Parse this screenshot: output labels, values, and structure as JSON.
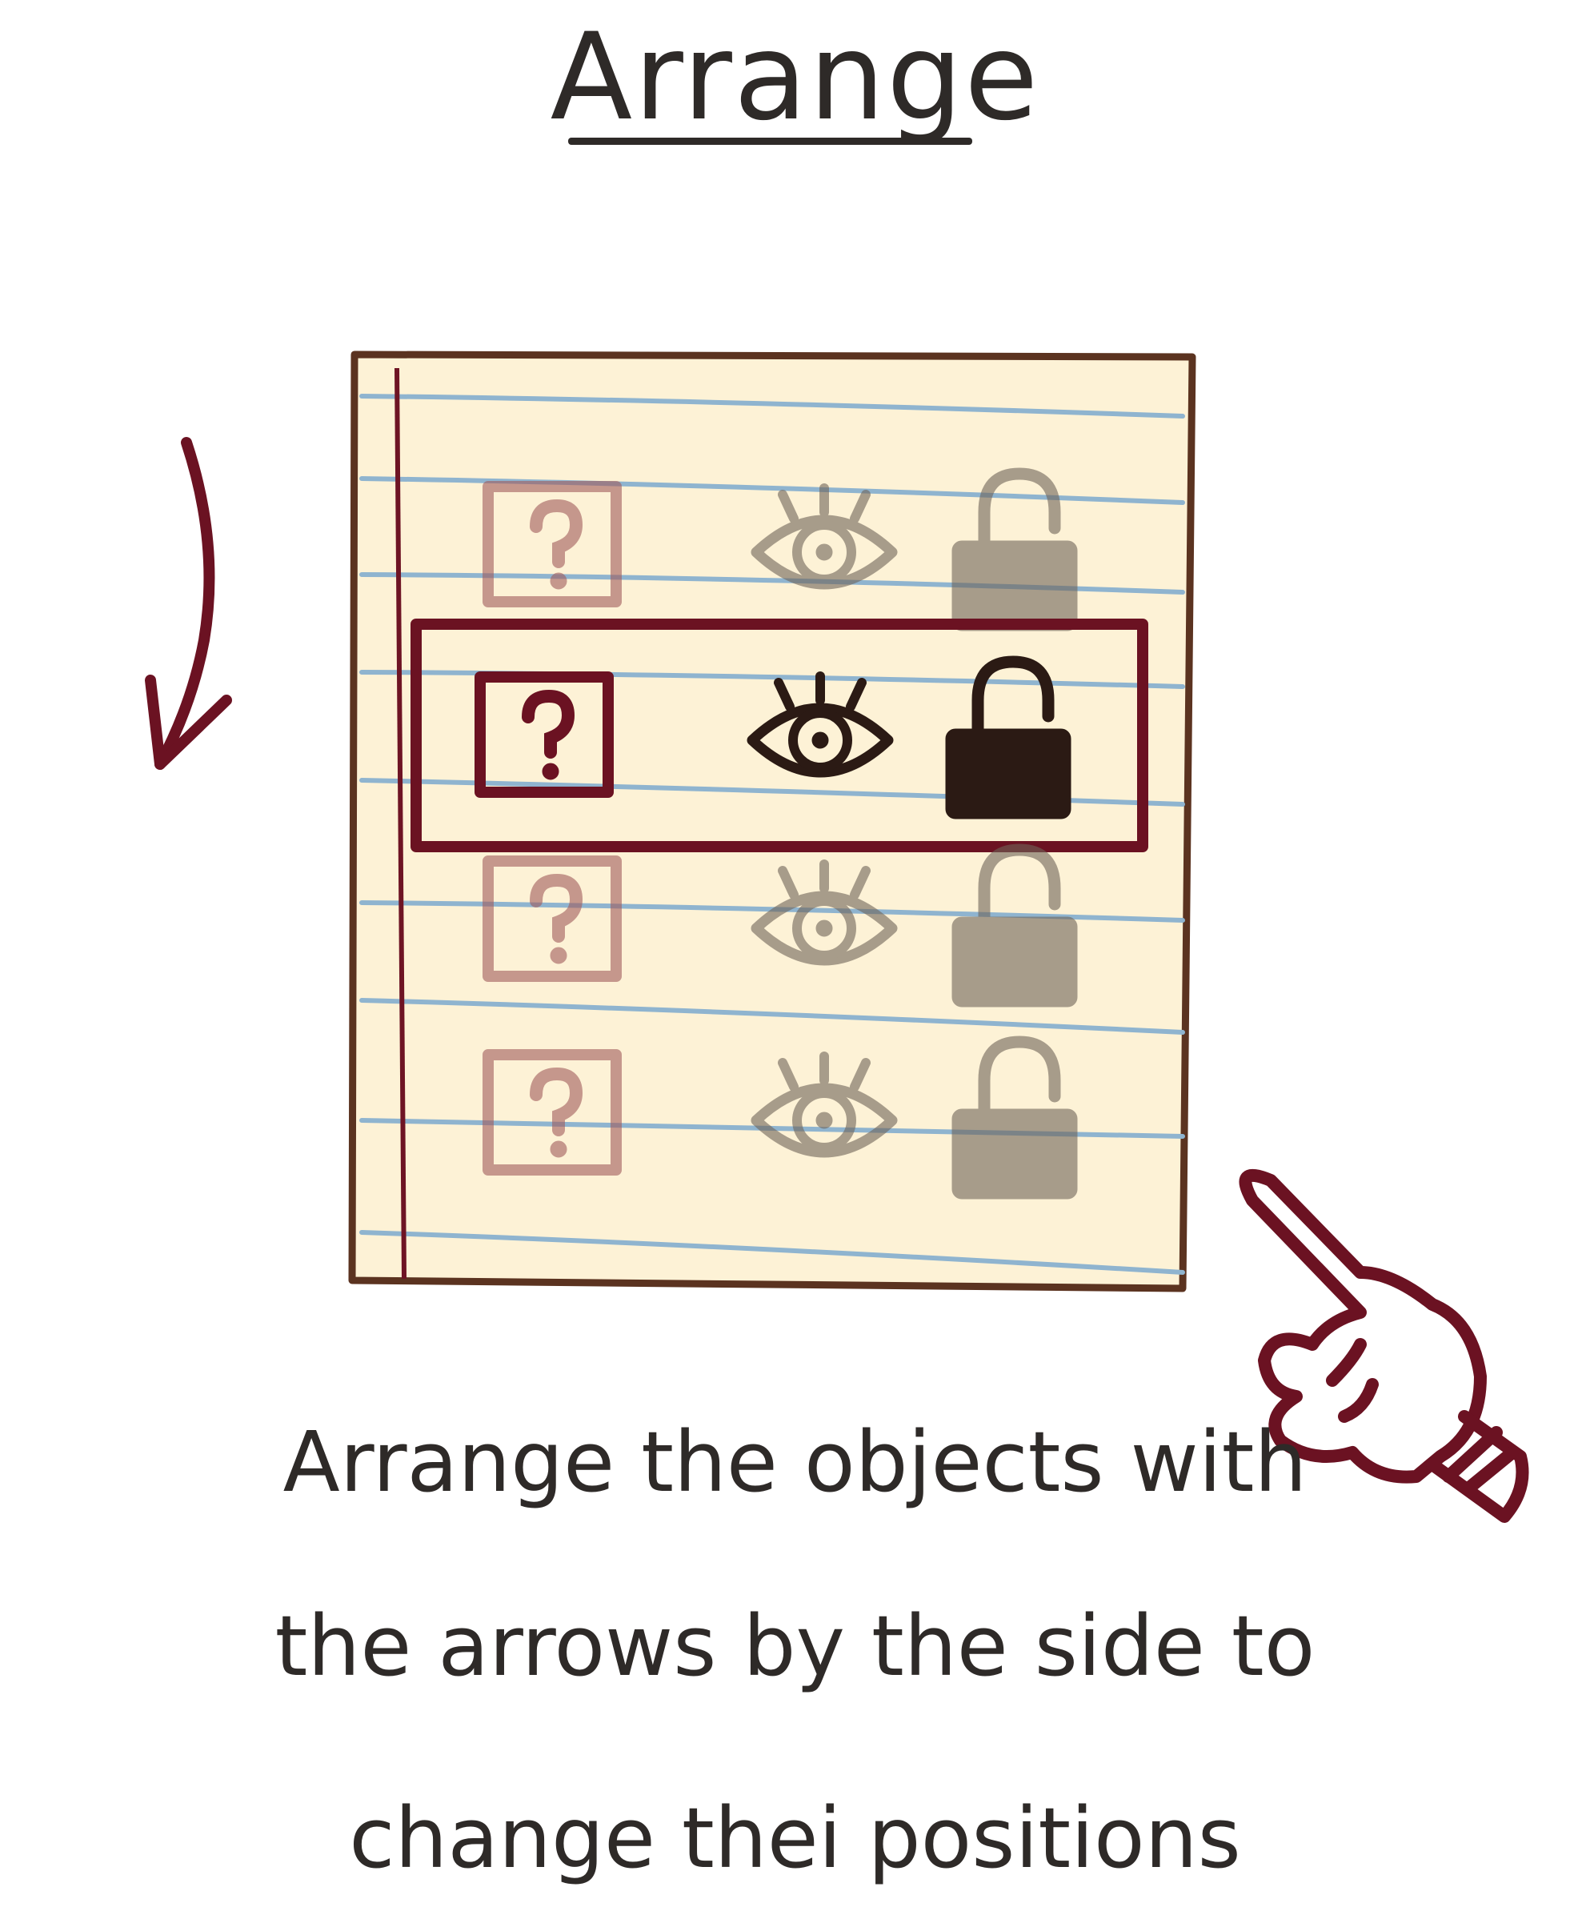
{
  "title": "Arrange",
  "caption": {
    "line1": "Arrange the objects with",
    "line2": "the arrows by the side to",
    "line3": "change thei positions"
  },
  "rows": [
    {
      "state": "faded",
      "items": [
        "question-box",
        "eye",
        "unlocked-padlock"
      ]
    },
    {
      "state": "selected",
      "items": [
        "question-box",
        "eye",
        "unlocked-padlock"
      ]
    },
    {
      "state": "faded",
      "items": [
        "question-box",
        "eye",
        "unlocked-padlock"
      ]
    },
    {
      "state": "faded",
      "items": [
        "question-box",
        "eye",
        "unlocked-padlock"
      ]
    }
  ],
  "icons": {
    "arrow": "down-arrow-icon",
    "pointer": "pointing-hand-icon",
    "question": "question-icon",
    "eye": "eye-icon",
    "lock": "unlocked-padlock-icon"
  },
  "colors": {
    "paper": "#fdf2d6",
    "paper_border": "#5b3320",
    "ruled_line": "#8fb4cf",
    "margin_line": "#6e1424",
    "accent": "#6b1222",
    "ink": "#2b1a14",
    "faded_box": "#b88383",
    "faded_icon": "#948b80"
  }
}
